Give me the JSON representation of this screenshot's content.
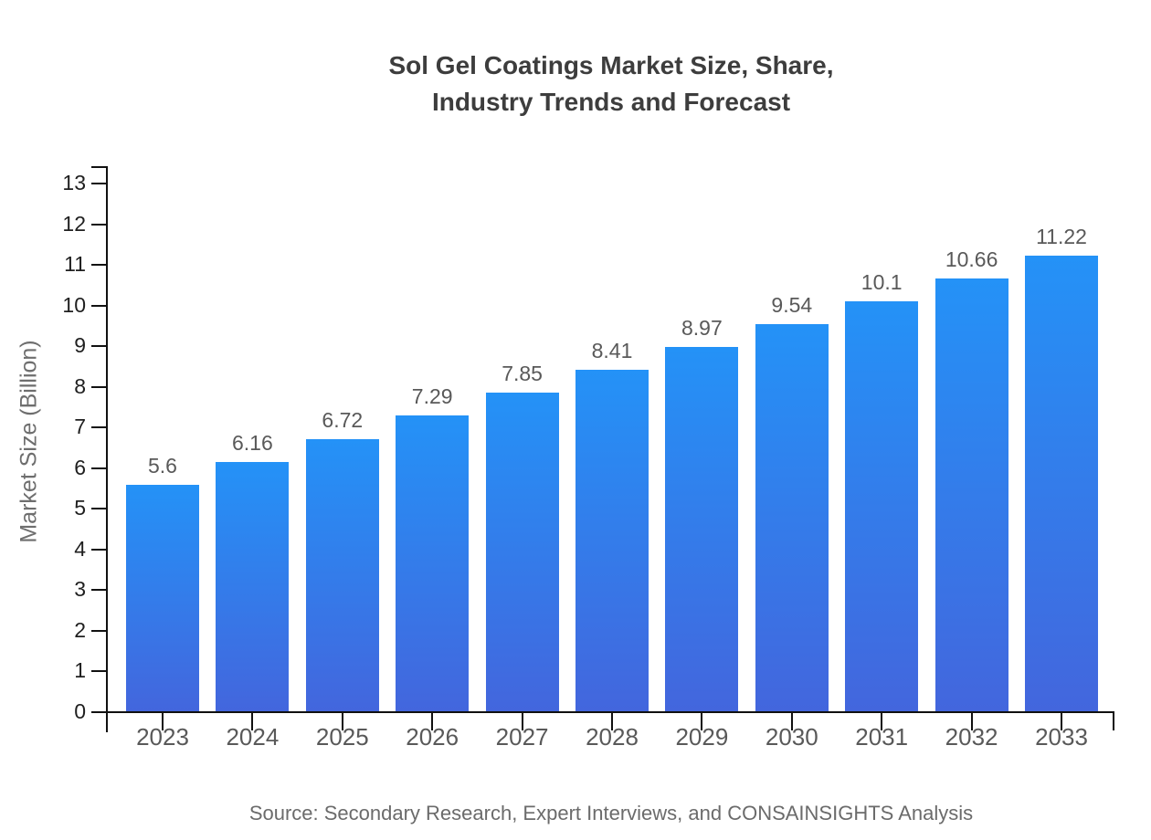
{
  "chart_data": {
    "type": "bar",
    "title_lines": [
      "Sol Gel Coatings Market Size, Share,",
      "Industry Trends and Forecast"
    ],
    "categories": [
      "2023",
      "2024",
      "2025",
      "2026",
      "2027",
      "2028",
      "2029",
      "2030",
      "2031",
      "2032",
      "2033"
    ],
    "values": [
      5.6,
      6.16,
      6.72,
      7.29,
      7.85,
      8.41,
      8.97,
      9.54,
      10.1,
      10.66,
      11.22
    ],
    "value_labels": [
      "5.6",
      "6.16",
      "6.72",
      "7.29",
      "7.85",
      "8.41",
      "8.97",
      "9.54",
      "10.1",
      "10.66",
      "11.22"
    ],
    "xlabel": "",
    "ylabel": "Market Size (Billion)",
    "ylim": [
      0,
      13
    ],
    "ytick_step": 1,
    "grid": false,
    "legend_position": "none",
    "bar_color_top": "#2492f7",
    "bar_color_bottom": "#4366dd"
  },
  "footer": {
    "source": "Source: Secondary Research, Expert Interviews, and CONSAINSIGHTS Analysis"
  },
  "colors": {
    "background": "#ffffff",
    "axis": "#111111",
    "title_text": "#3d3d3d",
    "tick_label_text": "#1f1f1f",
    "category_label_text": "#595959",
    "value_label_text": "#595959",
    "axis_title_text": "#6e6e6e",
    "source_text": "#6b6b6b"
  }
}
